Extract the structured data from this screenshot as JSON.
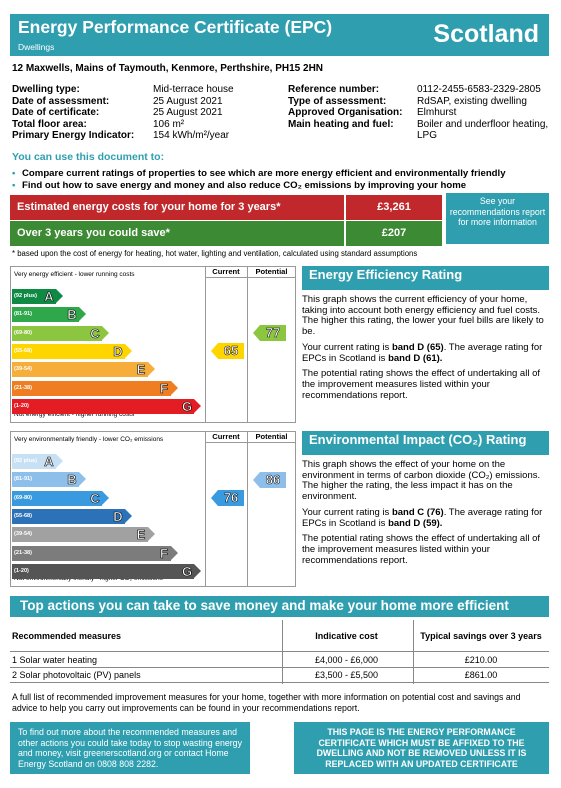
{
  "header": {
    "title": "Energy Performance Certificate (EPC)",
    "subtitle": "Dwellings",
    "country": "Scotland"
  },
  "address": "12 Maxwells,  Mains of Taymouth, Kenmore, Perthshire, PH15 2HN",
  "left_info": [
    {
      "label": "Dwelling type:",
      "value": "Mid-terrace house"
    },
    {
      "label": "Date of assessment:",
      "value": "25 August 2021"
    },
    {
      "label": "Date of certificate:",
      "value": "25 August 2021"
    },
    {
      "label": "Total floor area:",
      "value": "106 m²"
    },
    {
      "label": "Primary Energy Indicator:",
      "value": "154 kWh/m²/year"
    }
  ],
  "right_info": [
    {
      "label": "Reference number:",
      "value": "0112-2455-6583-2329-2805"
    },
    {
      "label": "Type of assessment:",
      "value": "RdSAP, existing dwelling"
    },
    {
      "label": "Approved Organisation:",
      "value": "Elmhurst"
    },
    {
      "label": "Main heating and fuel:",
      "value": "Boiler and underfloor heating, LPG"
    }
  ],
  "use_heading": "You can use this document to:",
  "bullets": [
    "Compare current ratings of properties to see which are more energy efficient and environmentally friendly",
    "Find out how to save energy and money and also reduce CO₂ emissions by improving your home"
  ],
  "costs": {
    "estimated_label": "Estimated energy costs for your home for 3 years*",
    "estimated_value": "£3,261",
    "estimated_color": "#c0282b",
    "save_label": "Over 3 years you could save*",
    "save_value": "£207",
    "save_color": "#3d8a34",
    "see_your": "See your recommendations report for more information"
  },
  "footnote": "* based upon the cost of energy for heating, hot water, lighting and ventilation, calculated using standard assumptions",
  "energy_chart": {
    "top_text": "Very energy efficient - lower running costs",
    "bottom_text": "Not energy efficient - higher running costs",
    "current_label": "Current",
    "potential_label": "Potential",
    "bands": [
      {
        "range": "(92 plus)",
        "letter": "A",
        "color": "#0f8a45"
      },
      {
        "range": "(81-91)",
        "letter": "B",
        "color": "#2ea84a"
      },
      {
        "range": "(69-80)",
        "letter": "C",
        "color": "#8cc53f"
      },
      {
        "range": "(55-68)",
        "letter": "D",
        "color": "#ffd500"
      },
      {
        "range": "(39-54)",
        "letter": "E",
        "color": "#f7ad3a"
      },
      {
        "range": "(21-38)",
        "letter": "F",
        "color": "#ef7d22"
      },
      {
        "range": "(1-20)",
        "letter": "G",
        "color": "#e31d23"
      }
    ],
    "current": 65,
    "current_band": "D",
    "current_color": "#ffd500",
    "potential": 77,
    "potential_band": "C",
    "potential_color": "#8cc53f"
  },
  "env_chart": {
    "top_text": "Very environmentally friendly - lower CO₂ emissions",
    "bottom_text": "Not environmentally friendly - higher CO₂ emissions",
    "current_label": "Current",
    "potential_label": "Potential",
    "bands": [
      {
        "range": "(92 plus)",
        "letter": "A",
        "color": "#c8e0f4"
      },
      {
        "range": "(81-91)",
        "letter": "B",
        "color": "#8ebfea"
      },
      {
        "range": "(69-80)",
        "letter": "C",
        "color": "#3a9ae0"
      },
      {
        "range": "(55-68)",
        "letter": "D",
        "color": "#2b72b8"
      },
      {
        "range": "(39-54)",
        "letter": "E",
        "color": "#a1a1a1"
      },
      {
        "range": "(21-38)",
        "letter": "F",
        "color": "#7c7c7c"
      },
      {
        "range": "(1-20)",
        "letter": "G",
        "color": "#555555"
      }
    ],
    "current": 76,
    "current_band": "C",
    "current_color": "#3a9ae0",
    "potential": 86,
    "potential_band": "B",
    "potential_color": "#8ebfea"
  },
  "eer": {
    "heading": "Energy Efficiency Rating",
    "p1": "This graph shows the current efficiency of your home, taking into account both energy efficiency and fuel costs. The higher this rating, the lower your fuel bills are likely to be.",
    "p2a": "Your current rating is ",
    "p2b": "band D (65)",
    "p2c": ". The average rating for EPCs in Scotland is ",
    "p2d": "band D (61).",
    "p3": "The potential rating shows the effect of undertaking all of the improvement measures listed within your recommendations report."
  },
  "eir": {
    "heading": "Environmental Impact (CO₂) Rating",
    "p1": "This graph shows the effect of your home on the environment in terms of carbon dioxide (CO₂) emissions. The higher the rating, the less impact it has on the environment.",
    "p2a": "Your current rating is ",
    "p2b": "band C (76)",
    "p2c": ". The average rating for EPCs in Scotland is ",
    "p2d": "band D (59).",
    "p3": "The potential rating shows the effect of undertaking all of the improvement measures listed within your recommendations report."
  },
  "top_actions": "Top actions you can take to save money and make your home more efficient",
  "table": {
    "headers": [
      "Recommended measures",
      "Indicative cost",
      "Typical savings over 3 years"
    ],
    "rows": [
      [
        "1 Solar water heating",
        "£4,000 - £6,000",
        "£210.00"
      ],
      [
        "2 Solar photovoltaic (PV) panels",
        "£3,500 - £5,500",
        "£861.00"
      ]
    ]
  },
  "full_list": "A full list of recommended improvement measures for your home, together with more information on potential cost and savings and advice to help you carry out improvements can be found in your recommendations report.",
  "bottom_left": "To find out more about the recommended measures and other actions you could take today to stop wasting energy and money, visit greenerscotland.org or contact Home Energy Scotland on 0808 808 2282.",
  "bottom_right": "THIS PAGE IS THE ENERGY PERFORMANCE CERTIFICATE WHICH MUST BE AFFIXED TO THE DWELLING AND NOT BE REMOVED UNLESS IT IS REPLACED WITH AN UPDATED CERTIFICATE"
}
